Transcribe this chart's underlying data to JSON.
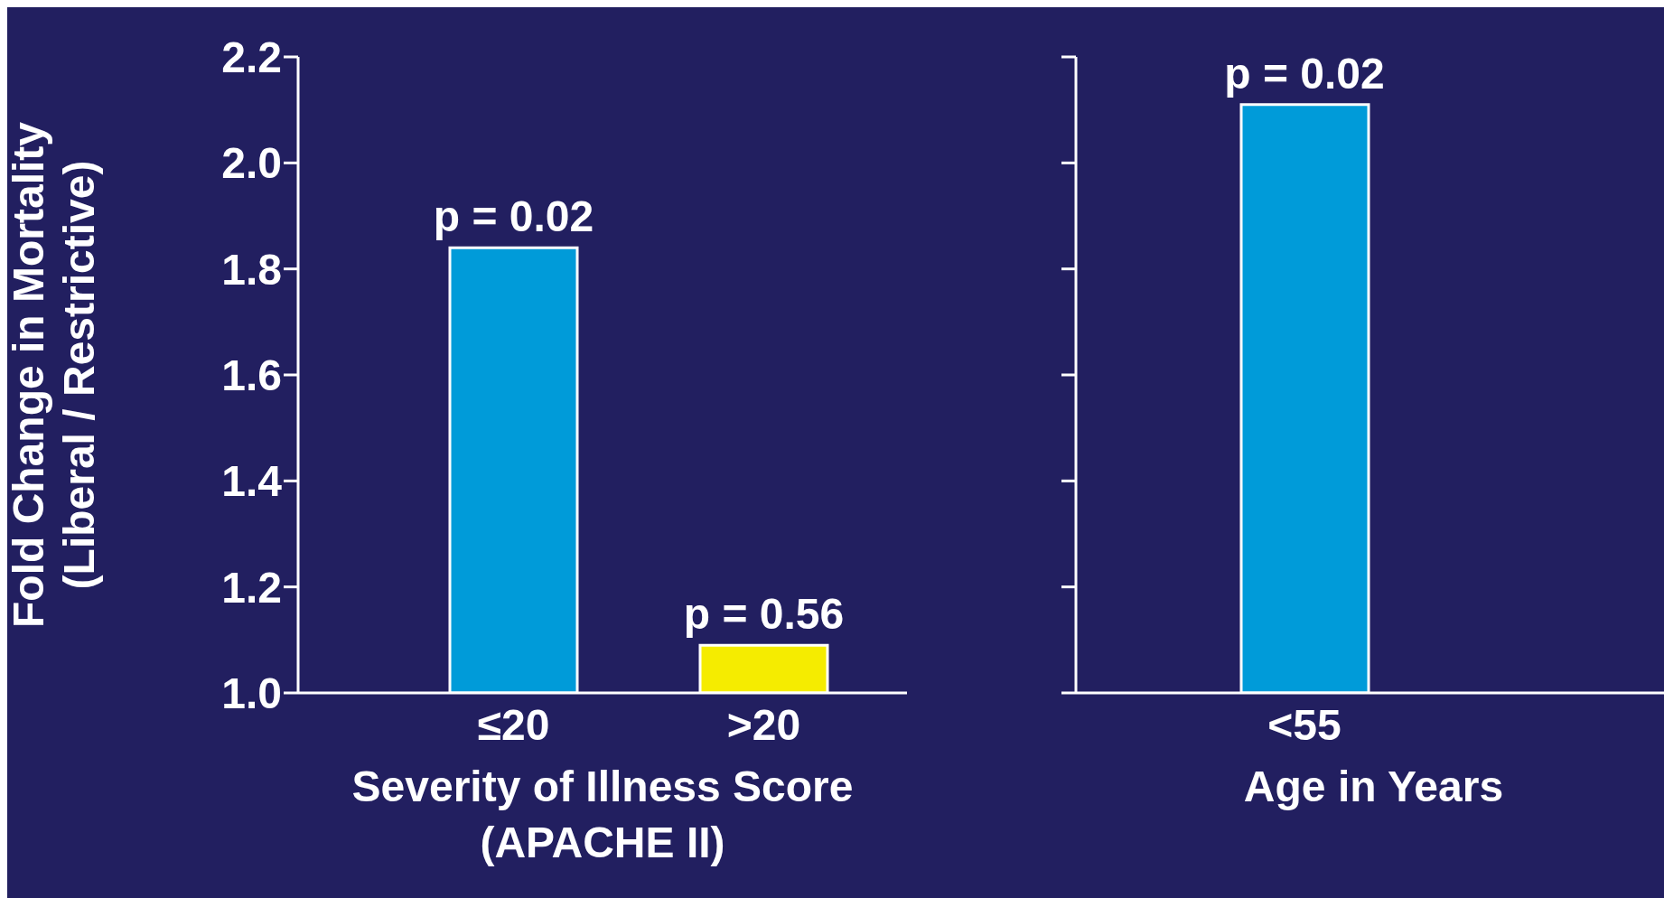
{
  "chart_data": [
    {
      "type": "bar",
      "ylabel": "Fold Change in Mortality\n(Liberal / Restrictive)",
      "xlabel": "Severity of Illness Score\n(APACHE II)",
      "categories": [
        "≤20",
        ">20"
      ],
      "values": [
        1.84,
        1.09
      ],
      "colors": [
        "#009bd9",
        "#f5ec00"
      ],
      "annotations": [
        {
          "text": "p = 0.02",
          "x": "≤20",
          "y": 1.84
        },
        {
          "text": "p = 0.56",
          "x": ">20",
          "y": 1.09
        }
      ],
      "ylim": [
        1.0,
        2.2
      ],
      "yticks": [
        {
          "value": 1,
          "label": "1.0"
        },
        {
          "value": 1.2,
          "label": "1.2"
        },
        {
          "value": 1.4,
          "label": "1.4"
        },
        {
          "value": 1.6,
          "label": "1.6"
        },
        {
          "value": 1.8,
          "label": "1.8"
        },
        {
          "value": 2,
          "label": "2.0"
        },
        {
          "value": 2.2,
          "label": "2.2"
        }
      ]
    },
    {
      "type": "bar",
      "xlabel": "Age in Years",
      "categories": [
        "<55"
      ],
      "values": [
        2.11
      ],
      "colors": [
        "#009bd9"
      ],
      "annotations": [
        {
          "text": "p = 0.02",
          "x": "<55",
          "y": 2.11
        }
      ],
      "ylim": [
        1.0,
        2.2
      ],
      "yticks": [
        {
          "value": 1,
          "label": null
        },
        {
          "value": 1.2,
          "label": null
        },
        {
          "value": 1.4,
          "label": null
        },
        {
          "value": 1.6,
          "label": null
        },
        {
          "value": 1.8,
          "label": null
        },
        {
          "value": 2,
          "label": null
        },
        {
          "value": 2.2,
          "label": null
        }
      ],
      "tick_labels": "x"
    }
  ]
}
